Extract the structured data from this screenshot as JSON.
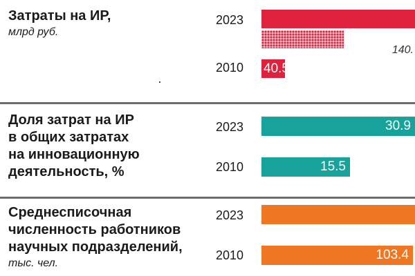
{
  "chart_data": [
    {
      "type": "bar",
      "title": "Затраты на ИР,",
      "unit": "млрд руб.",
      "color": "#e0213d",
      "categories": [
        "2023",
        "2010"
      ],
      "series": [
        {
          "values": [
            275.0,
            40.5
          ],
          "labels": [
            "",
            "40.5"
          ]
        },
        {
          "values": [
            140.0,
            null
          ],
          "labels": [
            "140.",
            ""
          ],
          "pattern": "dotted"
        }
      ]
    },
    {
      "type": "bar",
      "title": "Доля затрат на ИР\nв общих затратах\nна  инновационную\nдеятельность, %",
      "unit": "",
      "color": "#17a39c",
      "categories": [
        "2023",
        "2010"
      ],
      "series": [
        {
          "values": [
            30.9,
            15.5
          ],
          "labels": [
            "30.9",
            "15.5"
          ]
        }
      ]
    },
    {
      "type": "bar",
      "title": "Среднесписочная\nчисленность работников\nнаучных подразделений,",
      "unit": "тыс. чел.",
      "color": "#ef7622",
      "categories": [
        "2023",
        "2010"
      ],
      "series": [
        {
          "values": [
            130.0,
            103.4
          ],
          "labels": [
            "",
            "103.4"
          ]
        }
      ]
    }
  ]
}
